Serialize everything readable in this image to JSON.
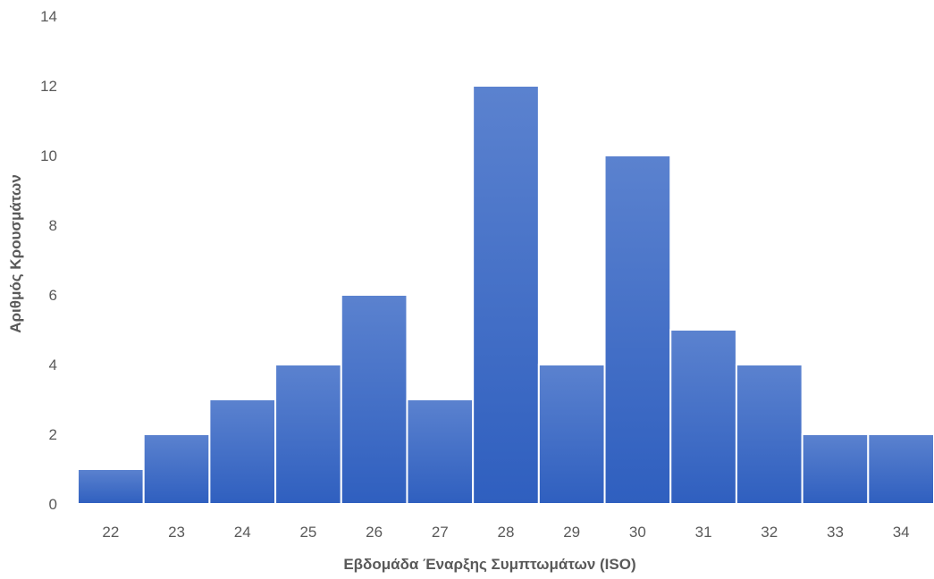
{
  "chart_data": {
    "type": "bar",
    "categories": [
      "22",
      "23",
      "24",
      "25",
      "26",
      "27",
      "28",
      "29",
      "30",
      "31",
      "32",
      "33",
      "34"
    ],
    "values": [
      1,
      2,
      3,
      4,
      6,
      3,
      12,
      4,
      10,
      5,
      4,
      2,
      2
    ],
    "title": "",
    "xlabel": "Εβδομάδα Έναρξης Συμπτωμάτων (ISO)",
    "ylabel": "Αριθμός Κρουσμάτων",
    "ylim": [
      0,
      14
    ],
    "yticks": [
      0,
      2,
      4,
      6,
      8,
      10,
      12,
      14
    ],
    "grid": false,
    "legend": "none",
    "bar_color_top": "#5B82CF",
    "bar_color_bottom": "#2F5FBF",
    "bar_edge_color": "#ffffff"
  }
}
